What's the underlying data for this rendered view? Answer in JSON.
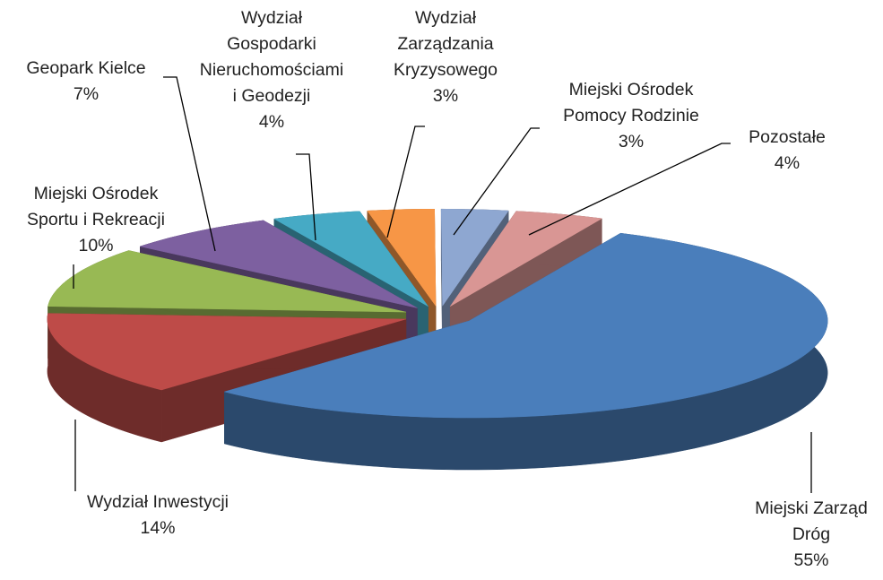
{
  "chart_data": {
    "type": "pie",
    "categories": [
      "Miejski Zarząd\nDróg",
      "Wydział Inwestycji",
      "Miejski Ośrodek\nSportu i Rekreacji",
      "Geopark Kielce",
      "Wydział\nGospodarki\nNieruchomościami\ni Geodezji",
      "Wydział\nZarządzania\nKryzysowego",
      "Miejski Ośrodek\nPomocy Rodzinie",
      "Pozostałe"
    ],
    "values": [
      55,
      14,
      10,
      7,
      4,
      3,
      3,
      4
    ],
    "value_labels": [
      "55%",
      "14%",
      "10%",
      "7%",
      "4%",
      "3%",
      "3%",
      "4%"
    ],
    "colors": [
      "#4a7ebb",
      "#be4b48",
      "#98b954",
      "#7d60a0",
      "#46aac5",
      "#f79646",
      "#8ea7d1",
      "#d99694"
    ]
  }
}
